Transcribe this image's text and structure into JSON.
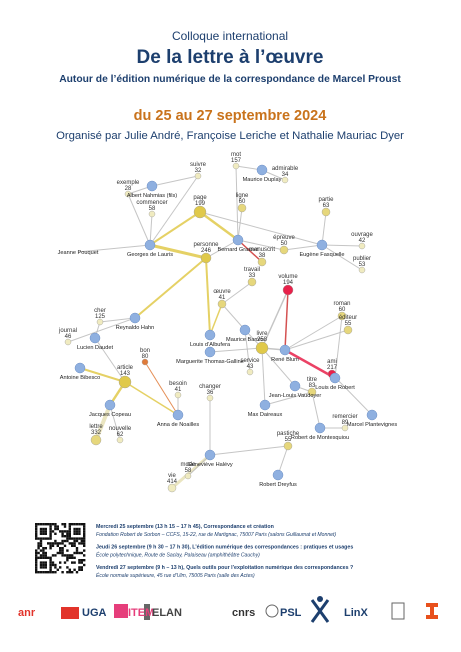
{
  "header": {
    "event_type": "Colloque international",
    "title": "De la lettre à l’œuvre",
    "subtitle": "Autour de l’édition numérique de la correspondance de Marcel Proust",
    "dates": "du 25 au 27 septembre 2024",
    "organizers": "Organisé par Julie André, Françoise Leriche et Nathalie Mauriac Dyer"
  },
  "network": {
    "people": [
      "Bernard Grasset",
      "Eugène Fasquelle",
      "Georges de Lauris",
      "Jeanne Pouquet",
      "Reynaldo Hahn",
      "Louis d’Albufera",
      "Lucien Daudet",
      "Maurice Barrès",
      "Marguerite Thomas-Galline",
      "René Blum",
      "Louis de Robert",
      "Jean-Louis Vaudoyer",
      "Max Daireaux",
      "Marcel Plantevignes",
      "Antoine Bibesco",
      "Jacques Copeau",
      "Anna de Noailles",
      "Robert de Montesquiou",
      "Geneviève Halévy",
      "Robert Dreyfus",
      "Maurice Duplay",
      "Albert Nahmias (fils)"
    ],
    "words": [
      {
        "label": "page",
        "count": 199
      },
      {
        "label": "ligne",
        "count": 60
      },
      {
        "label": "partie",
        "count": 63
      },
      {
        "label": "épreuve",
        "count": 50
      },
      {
        "label": "manuscrit",
        "count": 38
      },
      {
        "label": "travail",
        "count": 33
      },
      {
        "label": "volume",
        "count": 194
      },
      {
        "label": "ouvrage",
        "count": 42
      },
      {
        "label": "publier",
        "count": 53
      },
      {
        "label": "roman",
        "count": 60
      },
      {
        "label": "éditeur",
        "count": 55
      },
      {
        "label": "œuvre",
        "count": 41
      },
      {
        "label": "livre",
        "count": 258
      },
      {
        "label": "article",
        "count": 143
      },
      {
        "label": "titre",
        "count": 83
      },
      {
        "label": "pastiche",
        "count": 55
      },
      {
        "label": "personne",
        "count": 246
      },
      {
        "label": "mot",
        "count": 157
      },
      {
        "label": "admirable",
        "count": 34
      },
      {
        "label": "suivre",
        "count": 32
      },
      {
        "label": "exemple",
        "count": 28
      },
      {
        "label": "commencer",
        "count": 58
      },
      {
        "label": "service",
        "count": 43
      },
      {
        "label": "cher",
        "count": 125
      },
      {
        "label": "journal",
        "count": 46
      },
      {
        "label": "lettre",
        "count": 332
      },
      {
        "label": "nouvelle",
        "count": 62
      },
      {
        "label": "bon",
        "count": 80
      },
      {
        "label": "besoin",
        "count": 41
      },
      {
        "label": "changer",
        "count": 36
      },
      {
        "label": "ami",
        "count": 217
      },
      {
        "label": "remercier",
        "count": 89
      },
      {
        "label": "mode",
        "count": 58
      },
      {
        "label": "vie",
        "count": 414
      }
    ]
  },
  "program": [
    {
      "day": "Mercredi 25 septembre (13 h 15 – 17 h 45), Correspondance et création",
      "place": "Fondation Robert de Sorbon – CCFS, 15-22, rue de Martignac, 75007 Paris (salons Guillaumat et Monnet)"
    },
    {
      "day": "Jeudi 26 septembre (9 h 30 – 17 h 30), L’édition numérique des correspondances : pratiques et usages",
      "place": "École polytechnique, Route de Saclay, Palaiseau (amphithéâtre Cauchy)"
    },
    {
      "day": "Vendredi 27 septembre (9 h – 13 h), Quels outils pour l’exploitation numérique des correspondances ?",
      "place": "École normale supérieure, 45 rue d’Ulm, 75005 Paris (salle des Actes)"
    }
  ],
  "logos": [
    "anr",
    "UGA",
    "ITEM",
    "ELAN",
    "cnrs",
    "PSL",
    "LinX"
  ]
}
